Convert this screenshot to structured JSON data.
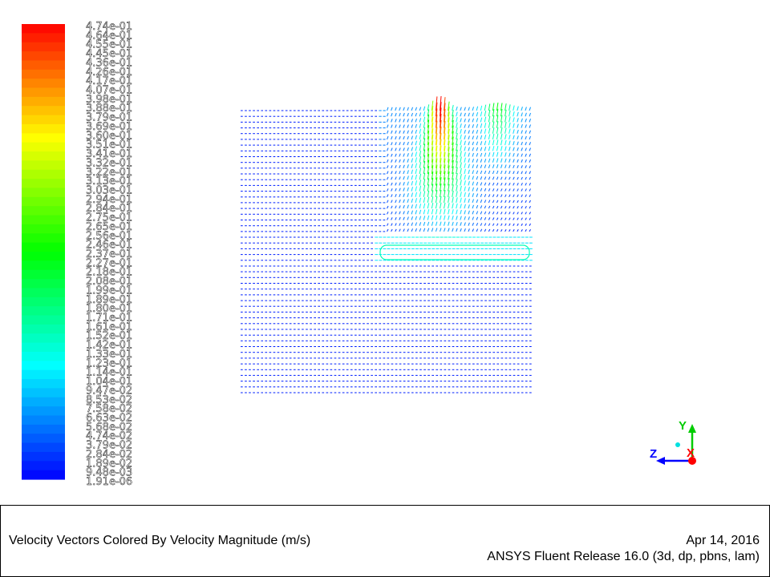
{
  "chart_data": {
    "type": "vector-field",
    "title": "Velocity Vectors Colored By Velocity Magnitude (m/s)",
    "colorbar": {
      "min": 1.91e-06,
      "max": 0.474,
      "tick_labels": [
        "4.74e-01",
        "4.64e-01",
        "4.55e-01",
        "4.45e-01",
        "4.36e-01",
        "4.26e-01",
        "4.17e-01",
        "4.07e-01",
        "3.98e-01",
        "3.88e-01",
        "3.79e-01",
        "3.69e-01",
        "3.60e-01",
        "3.51e-01",
        "3.41e-01",
        "3.32e-01",
        "3.22e-01",
        "3.13e-01",
        "3.03e-01",
        "2.94e-01",
        "2.84e-01",
        "2.75e-01",
        "2.65e-01",
        "2.56e-01",
        "2.46e-01",
        "2.37e-01",
        "2.27e-01",
        "2.18e-01",
        "2.08e-01",
        "1.99e-01",
        "1.89e-01",
        "1.80e-01",
        "1.71e-01",
        "1.61e-01",
        "1.52e-01",
        "1.42e-01",
        "1.33e-01",
        "1.23e-01",
        "1.14e-01",
        "1.04e-01",
        "9.47e-02",
        "8.53e-02",
        "7.58e-02",
        "6.63e-02",
        "5.68e-02",
        "4.74e-02",
        "3.79e-02",
        "2.84e-02",
        "1.89e-02",
        "9.48e-03",
        "1.91e-06"
      ]
    },
    "axes_triad": {
      "y": "Y",
      "z": "Z",
      "x": "X"
    }
  },
  "caption": {
    "title": "Velocity Vectors Colored By Velocity Magnitude (m/s)",
    "date": "Apr 14, 2016",
    "release": "ANSYS Fluent Release 16.0 (3d, dp, pbns, lam)"
  },
  "colors": {
    "axis_y": "#00cc00",
    "axis_z": "#0000ff",
    "axis_x": "#ff0000"
  }
}
